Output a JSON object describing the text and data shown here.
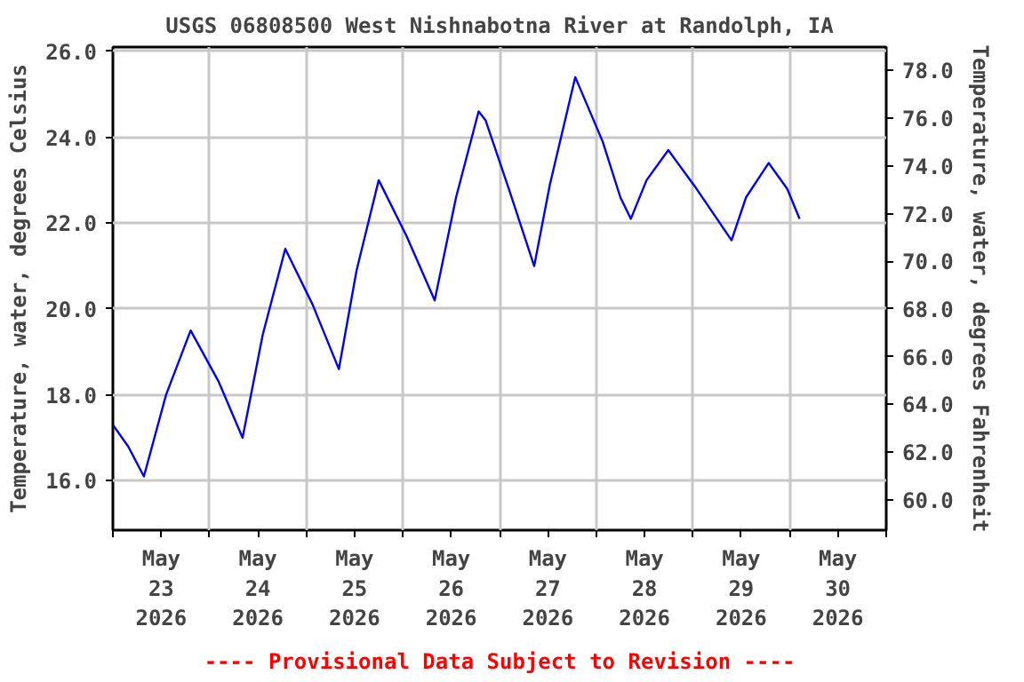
{
  "chart_data": {
    "type": "line",
    "title": "USGS 06808500 West Nishnabotna River at Randolph, IA",
    "ylabel": "Temperature, water, degrees Celsius",
    "y2label": "Temperature, water, degrees Fahrenheit",
    "annotations": [
      "---- Provisional Data Subject to Revision ----"
    ],
    "x": [
      "2026-05-23T00:00",
      "2026-05-23T03:48",
      "2026-05-23T07:42",
      "2026-05-23T13:12",
      "2026-05-23T19:18",
      "2026-05-24T02:18",
      "2026-05-24T08:12",
      "2026-05-24T13:12",
      "2026-05-24T18:48",
      "2026-05-25T01:36",
      "2026-05-25T08:06",
      "2026-05-25T12:30",
      "2026-05-25T18:00",
      "2026-05-26T00:54",
      "2026-05-26T07:54",
      "2026-05-26T13:12",
      "2026-05-26T18:48",
      "2026-05-26T20:30",
      "2026-05-27T02:18",
      "2026-05-27T08:36",
      "2026-05-27T12:30",
      "2026-05-27T18:48",
      "2026-05-28T01:36",
      "2026-05-28T06:00",
      "2026-05-28T08:36",
      "2026-05-28T12:30",
      "2026-05-28T17:54",
      "2026-05-29T00:54",
      "2026-05-29T09:36",
      "2026-05-29T13:12",
      "2026-05-29T18:48",
      "2026-05-29T23:24",
      "2026-05-30T02:30"
    ],
    "series": [
      {
        "color": "#0000ff",
        "values": [
          17.3,
          16.8,
          16.1,
          18.0,
          19.5,
          18.3,
          17.0,
          19.4,
          21.4,
          20.1,
          18.6,
          20.9,
          23.0,
          21.7,
          20.2,
          22.6,
          24.6,
          24.4,
          22.8,
          21.0,
          22.9,
          25.4,
          23.9,
          22.6,
          22.1,
          23.0,
          23.7,
          22.8,
          21.6,
          22.6,
          23.4,
          22.8,
          22.1
        ]
      }
    ],
    "xlim": [
      "2026-05-23T00:00",
      "2026-05-31T00:00"
    ],
    "xticks": [
      {
        "value": "2026-05-23T00:00",
        "label": null
      },
      {
        "value": "2026-05-23T12:00",
        "label": "May\n23\n2026"
      },
      {
        "value": "2026-05-24T00:00",
        "label": null
      },
      {
        "value": "2026-05-24T12:00",
        "label": "May\n24\n2026"
      },
      {
        "value": "2026-05-25T00:00",
        "label": null
      },
      {
        "value": "2026-05-25T12:00",
        "label": "May\n25\n2026"
      },
      {
        "value": "2026-05-26T00:00",
        "label": null
      },
      {
        "value": "2026-05-26T12:00",
        "label": "May\n26\n2026"
      },
      {
        "value": "2026-05-27T00:00",
        "label": null
      },
      {
        "value": "2026-05-27T12:00",
        "label": "May\n27\n2026"
      },
      {
        "value": "2026-05-28T00:00",
        "label": null
      },
      {
        "value": "2026-05-28T12:00",
        "label": "May\n28\n2026"
      },
      {
        "value": "2026-05-29T00:00",
        "label": null
      },
      {
        "value": "2026-05-29T12:00",
        "label": "May\n29\n2026"
      },
      {
        "value": "2026-05-30T00:00",
        "label": null
      },
      {
        "value": "2026-05-30T12:00",
        "label": "May\n30\n2026"
      },
      {
        "value": "2026-05-31T00:00",
        "label": null
      }
    ],
    "ylim": [
      14.85,
      26.1
    ],
    "yticks": [
      {
        "value": 16,
        "label": "16.0"
      },
      {
        "value": 18,
        "label": "18.0"
      },
      {
        "value": 20,
        "label": "20.0"
      },
      {
        "value": 22,
        "label": "22.0"
      },
      {
        "value": 24,
        "label": "24.0"
      },
      {
        "value": 26,
        "label": "26.0"
      }
    ],
    "y2lim": [
      58.73,
      78.98
    ],
    "y2ticks": [
      {
        "value": 60,
        "label": "60.0"
      },
      {
        "value": 62,
        "label": "62.0"
      },
      {
        "value": 64,
        "label": "64.0"
      },
      {
        "value": 66,
        "label": "66.0"
      },
      {
        "value": 68,
        "label": "68.0"
      },
      {
        "value": 70,
        "label": "70.0"
      },
      {
        "value": 72,
        "label": "72.0"
      },
      {
        "value": 74,
        "label": "74.0"
      },
      {
        "value": 76,
        "label": "76.0"
      },
      {
        "value": 78,
        "label": "78.0"
      }
    ],
    "grid": true,
    "line_style": "solid"
  }
}
